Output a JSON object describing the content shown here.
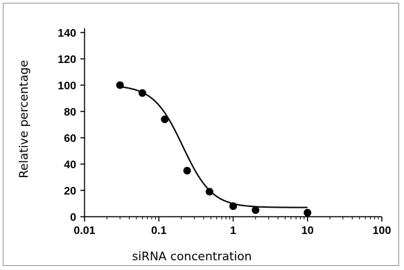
{
  "chart_data": {
    "type": "scatter",
    "title": "",
    "xlabel": "siRNA concentration",
    "ylabel": "Relative percentage",
    "xscale": "log",
    "xlim": [
      0.01,
      100
    ],
    "ylim": [
      0,
      140
    ],
    "x_ticks": [
      "0.01",
      "0.1",
      "1",
      "10",
      "100"
    ],
    "y_ticks": [
      "0",
      "20",
      "40",
      "60",
      "80",
      "100",
      "120",
      "140"
    ],
    "grid": false,
    "legend": "none",
    "series": [
      {
        "points": [
          {
            "x": 0.03,
            "y": 100
          },
          {
            "x": 0.06,
            "y": 94
          },
          {
            "x": 0.12,
            "y": 74
          },
          {
            "x": 0.24,
            "y": 35
          },
          {
            "x": 0.48,
            "y": 19
          },
          {
            "x": 1.0,
            "y": 8
          },
          {
            "x": 2.0,
            "y": 5
          },
          {
            "x": 10.0,
            "y": 3
          }
        ],
        "fit_curve": {
          "type": "sigmoid",
          "top": 100,
          "bottom": 7,
          "ec50": 0.21,
          "hill": 2.2,
          "x_range": [
            0.03,
            10
          ]
        }
      }
    ]
  }
}
